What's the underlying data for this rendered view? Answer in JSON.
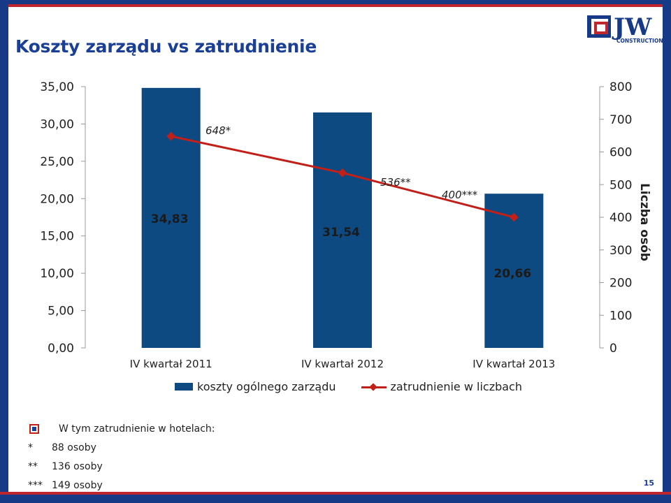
{
  "slide": {
    "title": "Koszty zarządu vs zatrudnienie",
    "page_number": "15",
    "logo_text": "JW",
    "logo_subtext": "CONSTRUCTION"
  },
  "colors": {
    "bar": "#0e4a82",
    "line": "#c11f17",
    "title": "#1b3f94"
  },
  "chart_data": {
    "type": "bar",
    "categories": [
      "IV kwartał 2011",
      "IV kwartał 2012",
      "IV kwartał 2013"
    ],
    "series": [
      {
        "name": "koszty ogólnego zarządu",
        "type": "bar",
        "axis": "left",
        "values": [
          34.83,
          31.54,
          20.66
        ],
        "labels": [
          "34,83",
          "31,54",
          "20,66"
        ]
      },
      {
        "name": "zatrudnienie w liczbach",
        "type": "line",
        "axis": "right",
        "values": [
          648,
          536,
          400
        ],
        "labels": [
          "648*",
          "536**",
          "400***"
        ]
      }
    ],
    "ylim_left": [
      0,
      35
    ],
    "yticks_left": [
      "0,00",
      "5,00",
      "10,00",
      "15,00",
      "20,00",
      "25,00",
      "30,00",
      "35,00"
    ],
    "ylim_right": [
      0,
      800
    ],
    "yticks_right": [
      "0",
      "100",
      "200",
      "300",
      "400",
      "500",
      "600",
      "700",
      "800"
    ],
    "ylabel_right": "Liczba osób",
    "xlabel": "",
    "ylabel": "",
    "legend_position": "bottom",
    "grid": false
  },
  "footnotes": {
    "heading": "W tym zatrudnienie w hotelach:",
    "items": [
      {
        "mark": "*",
        "text": "88 osoby"
      },
      {
        "mark": "**",
        "text": "136 osoby"
      },
      {
        "mark": "***",
        "text": "149 osoby"
      }
    ]
  }
}
